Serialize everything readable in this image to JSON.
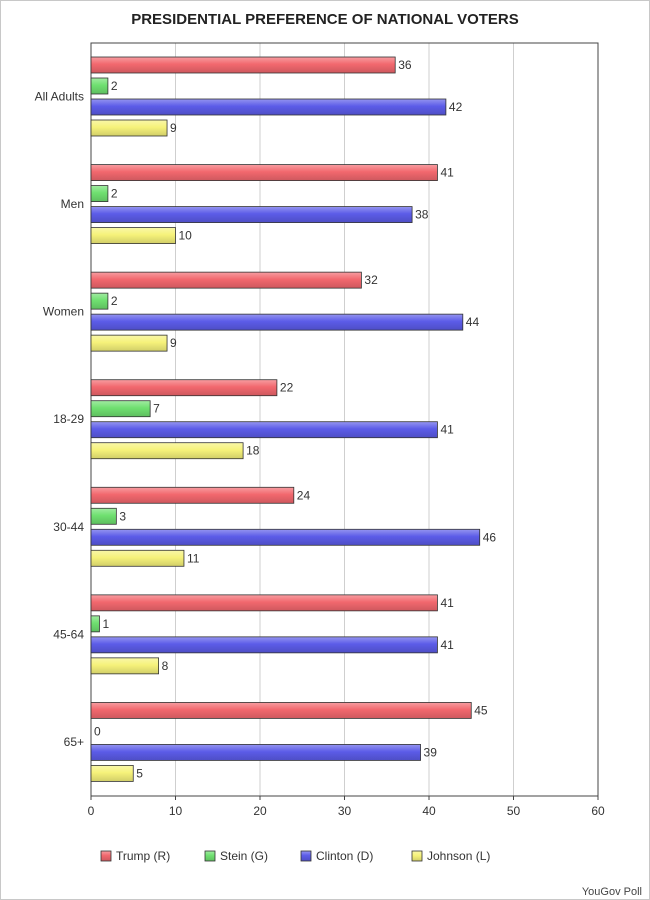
{
  "chart_data": {
    "type": "bar",
    "orientation": "horizontal",
    "title": "PRESIDENTIAL PREFERENCE OF NATIONAL VOTERS",
    "categories": [
      "All Adults",
      "Men",
      "Women",
      "18-29",
      "30-44",
      "45-64",
      "65+"
    ],
    "series": [
      {
        "name": "Trump (R)",
        "color": "#f2686e",
        "values": [
          36,
          41,
          32,
          22,
          24,
          41,
          45
        ]
      },
      {
        "name": "Stein (G)",
        "color": "#6fe070",
        "values": [
          2,
          2,
          2,
          7,
          3,
          1,
          0
        ]
      },
      {
        "name": "Clinton (D)",
        "color": "#5c5ce8",
        "values": [
          42,
          38,
          44,
          41,
          46,
          41,
          39
        ]
      },
      {
        "name": "Johnson (L)",
        "color": "#f6f27a",
        "values": [
          9,
          10,
          9,
          18,
          11,
          8,
          5
        ]
      }
    ],
    "xlim": [
      0,
      60
    ],
    "xticks": [
      0,
      10,
      20,
      30,
      40,
      50,
      60
    ],
    "grid": true,
    "legend_position": "bottom",
    "data_labels": true,
    "source": "YouGov Poll"
  }
}
